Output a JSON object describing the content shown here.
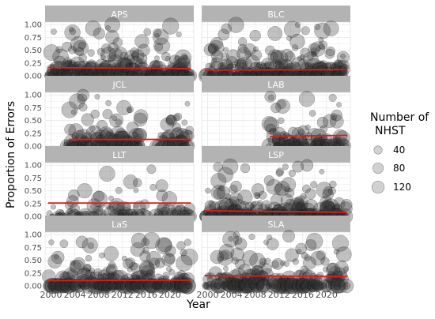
{
  "chart_data": {
    "type": "scatter",
    "faceted": true,
    "xlabel": "Year",
    "ylabel": "Proportion of Errors",
    "xlim": [
      1999,
      2024
    ],
    "ylim": [
      0,
      1.05
    ],
    "x_ticks": [
      2000,
      2004,
      2008,
      2012,
      2016,
      2020
    ],
    "y_ticks": [
      0,
      0.25,
      0.5,
      0.75,
      1.0
    ],
    "y_tick_labels": [
      "0.00",
      "0.25",
      "0.50",
      "0.75",
      "1.00"
    ],
    "grid": true,
    "point_color": "#333333",
    "point_opacity": 0.3,
    "trend_color": "#e41a1c",
    "strip_color": "#b3b3b3",
    "legend": {
      "title_line1": "Number of",
      "title_line2": "NHST",
      "position": "right",
      "entries": [
        {
          "label": "40",
          "value": 40
        },
        {
          "label": "80",
          "value": 80
        },
        {
          "label": "120",
          "value": 120
        }
      ]
    },
    "panels": [
      {
        "name": "APS",
        "x_range": [
          1999.5,
          2023.5
        ],
        "trend": [
          0.16,
          0.14
        ],
        "data_years": [
          2000,
          2023
        ],
        "density": 1.0,
        "seed": 11
      },
      {
        "name": "BLC",
        "x_range": [
          1999.5,
          2023.5
        ],
        "trend": [
          0.11,
          0.12
        ],
        "data_years": [
          2000,
          2023
        ],
        "density": 0.9,
        "seed": 23
      },
      {
        "name": "JCL",
        "x_range": [
          2003.0,
          2023.5
        ],
        "trend": [
          0.13,
          0.13
        ],
        "data_years": [
          2003,
          2023
        ],
        "density": 0.8,
        "seed": 37,
        "gap": [
          2015.2,
          2017.8
        ]
      },
      {
        "name": "LAB",
        "x_range": [
          2010.5,
          2023.5
        ],
        "trend": [
          0.19,
          0.21
        ],
        "data_years": [
          2010.5,
          2023
        ],
        "density": 0.7,
        "seed": 41
      },
      {
        "name": "LLT",
        "x_range": [
          1999.5,
          2023.5
        ],
        "trend": [
          0.26,
          0.26
        ],
        "data_years": [
          2000,
          2023
        ],
        "density": 0.35,
        "seed": 53
      },
      {
        "name": "LSP",
        "x_range": [
          1999.5,
          2023.5
        ],
        "trend": [
          0.11,
          0.08
        ],
        "data_years": [
          2000,
          2023
        ],
        "density": 1.0,
        "seed": 67
      },
      {
        "name": "LaS",
        "x_range": [
          1999.5,
          2023.5
        ],
        "trend": [
          0.1,
          0.11
        ],
        "data_years": [
          2000,
          2023
        ],
        "density": 0.9,
        "seed": 79
      },
      {
        "name": "SLA",
        "x_range": [
          1999.5,
          2023.5
        ],
        "trend": [
          0.2,
          0.18
        ],
        "data_years": [
          2000,
          2023
        ],
        "density": 0.75,
        "seed": 97
      }
    ]
  }
}
